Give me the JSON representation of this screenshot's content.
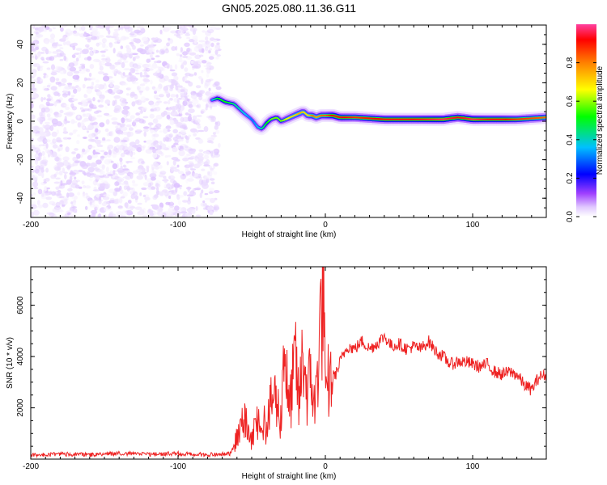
{
  "title": "GN05.2025.080.11.36.G11",
  "chart_data": [
    {
      "type": "heatmap",
      "title": "",
      "xlabel": "Height of straight line (km)",
      "ylabel": "Frequency (Hz)",
      "xlim": [
        -200,
        150
      ],
      "ylim": [
        -50,
        50
      ],
      "x_ticks": [
        -200,
        -100,
        0,
        100
      ],
      "y_ticks": [
        -40,
        -20,
        0,
        20,
        40
      ],
      "colorbar": {
        "label": "Normalized spectral amplitude",
        "range": [
          0,
          1
        ],
        "ticks": [
          0.0,
          0.2,
          0.4,
          0.6,
          0.8
        ],
        "colormap": [
          "#ffffff",
          "#e0c8ff",
          "#a040ff",
          "#0000ff",
          "#00c0ff",
          "#00ff00",
          "#ffff00",
          "#ff8000",
          "#ff0000",
          "#ff40a0"
        ]
      },
      "noise_region": {
        "x_range": [
          -200,
          -72
        ],
        "y_range": [
          -50,
          50
        ],
        "amplitude_range": [
          0.02,
          0.12
        ]
      },
      "signal_ridge": {
        "x": [
          -77,
          -73,
          -68,
          -62,
          -55,
          -50,
          -46,
          -43,
          -40,
          -37,
          -33,
          -30,
          -27,
          -24,
          -21,
          -18,
          -15,
          -12,
          -9,
          -6,
          -3,
          0,
          5,
          10,
          20,
          40,
          60,
          80,
          90,
          100,
          110,
          120,
          130,
          150
        ],
        "frequency": [
          11,
          12,
          10,
          9,
          4,
          1,
          -3,
          -4,
          -1,
          1,
          2,
          0,
          1,
          2,
          3,
          4,
          5,
          3,
          3,
          2,
          3,
          3,
          3,
          2,
          2,
          1,
          1,
          1,
          2,
          1,
          1,
          1,
          1,
          2
        ],
        "amplitude": [
          0.45,
          0.55,
          0.55,
          0.5,
          0.45,
          0.4,
          0.45,
          0.5,
          0.55,
          0.6,
          0.6,
          0.6,
          0.65,
          0.7,
          0.7,
          0.75,
          0.7,
          0.7,
          0.8,
          0.75,
          0.8,
          0.8,
          0.9,
          0.9,
          0.85,
          0.9,
          0.9,
          0.95,
          0.9,
          0.95,
          0.9,
          0.9,
          0.85,
          0.8
        ]
      }
    },
    {
      "type": "line",
      "title": "",
      "xlabel": "Height of straight line (km)",
      "ylabel": "SNR (10 * v/v)",
      "xlim": [
        -200,
        150
      ],
      "ylim": [
        0,
        7500
      ],
      "x_ticks": [
        -200,
        -100,
        0,
        100
      ],
      "y_ticks": [
        2000,
        4000,
        6000
      ],
      "series": [
        {
          "color": "#ee2222",
          "x": [
            -200,
            -180,
            -160,
            -140,
            -120,
            -100,
            -80,
            -65,
            -60,
            -55,
            -50,
            -45,
            -40,
            -35,
            -30,
            -28,
            -25,
            -22,
            -20,
            -18,
            -15,
            -12,
            -10,
            -7,
            -5,
            -3,
            -1,
            0,
            2,
            5,
            8,
            10,
            15,
            20,
            25,
            30,
            35,
            40,
            45,
            50,
            55,
            60,
            65,
            70,
            75,
            80,
            85,
            90,
            95,
            100,
            105,
            110,
            115,
            120,
            125,
            130,
            135,
            140,
            145,
            150
          ],
          "y": [
            150,
            200,
            170,
            230,
            180,
            220,
            170,
            200,
            800,
            1500,
            700,
            1800,
            1200,
            2600,
            1500,
            5000,
            1800,
            3000,
            4000,
            2000,
            4300,
            2300,
            3500,
            1800,
            4000,
            5500,
            7400,
            1800,
            3000,
            3200,
            3400,
            3800,
            4400,
            4300,
            4600,
            4300,
            4500,
            4800,
            4400,
            4500,
            4300,
            4400,
            4300,
            4600,
            4200,
            4000,
            3700,
            3800,
            3800,
            3700,
            3600,
            3700,
            3400,
            3300,
            3400,
            3300,
            2900,
            2700,
            3200,
            3300
          ]
        }
      ]
    }
  ]
}
